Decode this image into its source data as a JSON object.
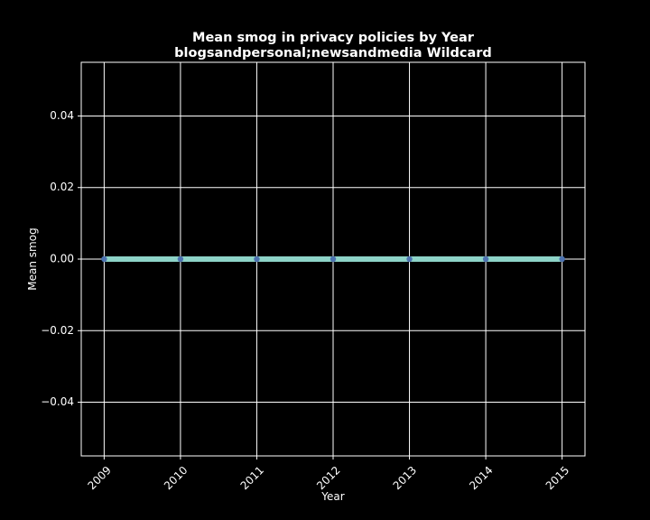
{
  "colors": {
    "background": "#000000",
    "foreground": "#ffffff",
    "grid": "#ffffff",
    "line": "#8dd3c7",
    "marker": "#4c72b0"
  },
  "chart_data": {
    "type": "line",
    "title": "Mean smog in privacy policies by Year",
    "subtitle": "blogsandpersonal;newsandmedia Wildcard",
    "xlabel": "Year",
    "ylabel": "Mean smog",
    "x": [
      "2009",
      "2010",
      "2011",
      "2012",
      "2013",
      "2014",
      "2015"
    ],
    "series": [
      {
        "values": [
          0,
          0,
          0,
          0,
          0,
          0,
          0
        ]
      }
    ],
    "xlim": [
      2008.7,
      2015.3
    ],
    "ylim": [
      -0.055,
      0.055
    ],
    "yticks": [
      -0.04,
      -0.02,
      0.0,
      0.02,
      0.04
    ],
    "ytick_labels": [
      "−0.04",
      "−0.02",
      "0.00",
      "0.02",
      "0.04"
    ],
    "xtick_rotation": 45,
    "grid": true,
    "legend": "none"
  }
}
